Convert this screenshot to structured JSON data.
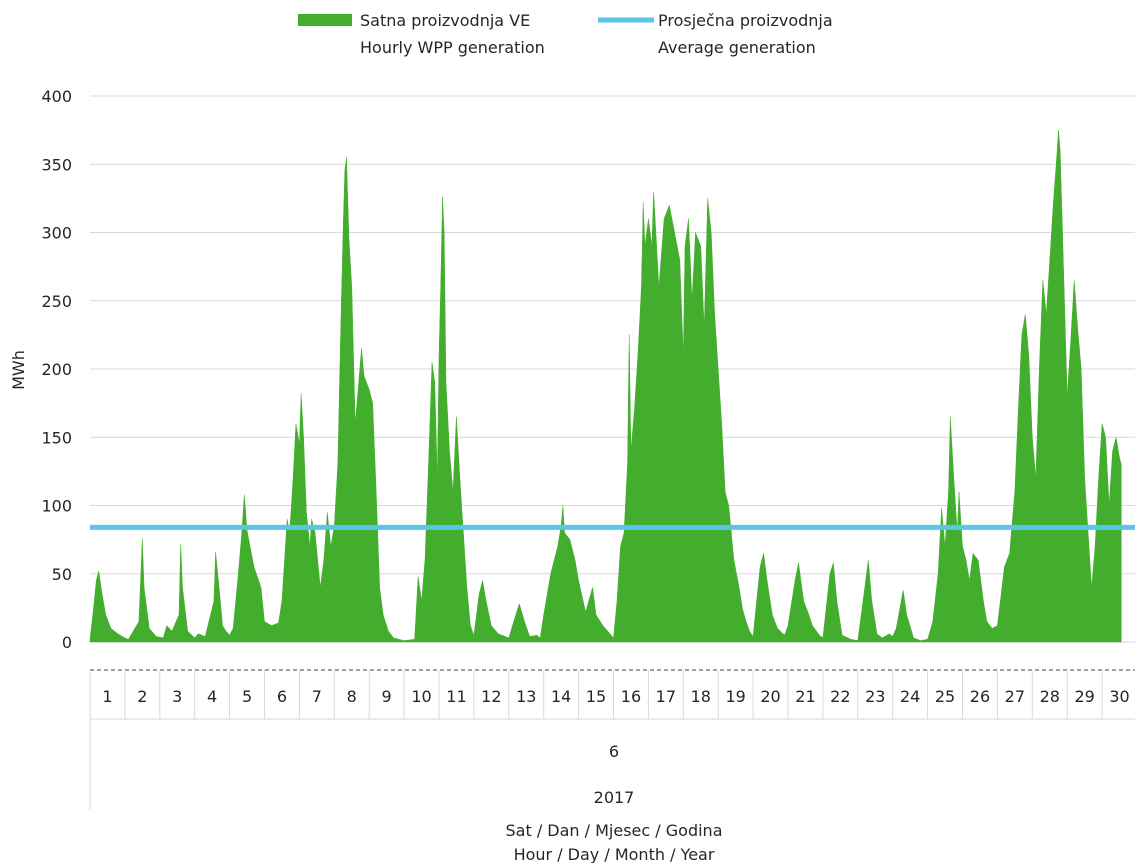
{
  "chart_data": {
    "type": "area",
    "title": "",
    "ylabel": "MWh",
    "xlabel_lines": [
      "Sat / Dan / Mjesec / Godina",
      "Hour / Day / Month / Year"
    ],
    "ylim": [
      0,
      400
    ],
    "yticks": [
      "0",
      "50",
      "100",
      "150",
      "200",
      "250",
      "300",
      "350",
      "400"
    ],
    "grid": "horizontal",
    "legend_position": "top",
    "legend": {
      "series1": [
        "Satna proizvodnja VE",
        "Hourly WPP generation"
      ],
      "series2": [
        "Prosječna proizvodnja",
        "Average generation"
      ]
    },
    "x_levels": {
      "day": [
        "1",
        "2",
        "3",
        "4",
        "5",
        "6",
        "7",
        "8",
        "9",
        "10",
        "11",
        "12",
        "13",
        "14",
        "15",
        "16",
        "17",
        "18",
        "19",
        "20",
        "21",
        "22",
        "23",
        "24",
        "25",
        "26",
        "27",
        "28",
        "29",
        "30"
      ],
      "month": "6",
      "year": "2017"
    },
    "series": [
      {
        "name": "Hourly WPP generation",
        "type": "area",
        "color": "#43AE2E",
        "x_unit": "day",
        "points": [
          [
            0.0,
            2
          ],
          [
            0.08,
            20
          ],
          [
            0.18,
            45
          ],
          [
            0.25,
            52
          ],
          [
            0.33,
            38
          ],
          [
            0.45,
            20
          ],
          [
            0.6,
            10
          ],
          [
            0.8,
            6
          ],
          [
            1.0,
            3
          ],
          [
            1.1,
            2
          ],
          [
            1.4,
            15
          ],
          [
            1.5,
            76
          ],
          [
            1.55,
            40
          ],
          [
            1.7,
            10
          ],
          [
            1.9,
            4
          ],
          [
            2.1,
            3
          ],
          [
            2.2,
            12
          ],
          [
            2.35,
            8
          ],
          [
            2.55,
            20
          ],
          [
            2.6,
            72
          ],
          [
            2.65,
            40
          ],
          [
            2.8,
            8
          ],
          [
            3.0,
            3
          ],
          [
            3.1,
            6
          ],
          [
            3.3,
            4
          ],
          [
            3.55,
            30
          ],
          [
            3.6,
            66
          ],
          [
            3.7,
            40
          ],
          [
            3.8,
            12
          ],
          [
            3.9,
            8
          ],
          [
            4.0,
            5
          ],
          [
            4.1,
            10
          ],
          [
            4.25,
            50
          ],
          [
            4.35,
            80
          ],
          [
            4.42,
            108
          ],
          [
            4.5,
            82
          ],
          [
            4.7,
            55
          ],
          [
            4.9,
            40
          ],
          [
            5.0,
            15
          ],
          [
            5.2,
            12
          ],
          [
            5.4,
            14
          ],
          [
            5.5,
            30
          ],
          [
            5.65,
            90
          ],
          [
            5.72,
            80
          ],
          [
            5.82,
            120
          ],
          [
            5.9,
            160
          ],
          [
            6.0,
            145
          ],
          [
            6.05,
            182
          ],
          [
            6.12,
            150
          ],
          [
            6.2,
            95
          ],
          [
            6.3,
            70
          ],
          [
            6.35,
            90
          ],
          [
            6.45,
            80
          ],
          [
            6.6,
            40
          ],
          [
            6.7,
            60
          ],
          [
            6.8,
            95
          ],
          [
            6.9,
            70
          ],
          [
            7.0,
            85
          ],
          [
            7.1,
            130
          ],
          [
            7.18,
            225
          ],
          [
            7.25,
            300
          ],
          [
            7.3,
            345
          ],
          [
            7.35,
            355
          ],
          [
            7.42,
            295
          ],
          [
            7.5,
            260
          ],
          [
            7.6,
            160
          ],
          [
            7.7,
            190
          ],
          [
            7.78,
            215
          ],
          [
            7.85,
            195
          ],
          [
            8.0,
            185
          ],
          [
            8.1,
            175
          ],
          [
            8.2,
            110
          ],
          [
            8.3,
            40
          ],
          [
            8.4,
            20
          ],
          [
            8.55,
            8
          ],
          [
            8.7,
            3
          ],
          [
            9.0,
            1
          ],
          [
            9.3,
            2
          ],
          [
            9.4,
            48
          ],
          [
            9.5,
            30
          ],
          [
            9.6,
            60
          ],
          [
            9.7,
            130
          ],
          [
            9.8,
            205
          ],
          [
            9.88,
            190
          ],
          [
            9.95,
            120
          ],
          [
            10.0,
            210
          ],
          [
            10.05,
            260
          ],
          [
            10.1,
            326
          ],
          [
            10.15,
            300
          ],
          [
            10.2,
            190
          ],
          [
            10.3,
            140
          ],
          [
            10.4,
            110
          ],
          [
            10.5,
            165
          ],
          [
            10.6,
            120
          ],
          [
            10.8,
            40
          ],
          [
            10.9,
            12
          ],
          [
            11.0,
            5
          ],
          [
            11.15,
            35
          ],
          [
            11.25,
            45
          ],
          [
            11.35,
            30
          ],
          [
            11.5,
            12
          ],
          [
            11.7,
            6
          ],
          [
            11.9,
            4
          ],
          [
            12.0,
            3
          ],
          [
            12.2,
            20
          ],
          [
            12.3,
            28
          ],
          [
            12.45,
            15
          ],
          [
            12.6,
            4
          ],
          [
            12.8,
            5
          ],
          [
            12.9,
            3
          ],
          [
            13.0,
            20
          ],
          [
            13.2,
            50
          ],
          [
            13.4,
            70
          ],
          [
            13.5,
            85
          ],
          [
            13.55,
            100
          ],
          [
            13.6,
            80
          ],
          [
            13.75,
            75
          ],
          [
            13.9,
            60
          ],
          [
            14.0,
            45
          ],
          [
            14.2,
            22
          ],
          [
            14.4,
            40
          ],
          [
            14.5,
            20
          ],
          [
            14.7,
            12
          ],
          [
            14.9,
            6
          ],
          [
            15.0,
            3
          ],
          [
            15.1,
            30
          ],
          [
            15.2,
            70
          ],
          [
            15.3,
            80
          ],
          [
            15.4,
            130
          ],
          [
            15.45,
            225
          ],
          [
            15.5,
            140
          ],
          [
            15.6,
            170
          ],
          [
            15.7,
            210
          ],
          [
            15.8,
            260
          ],
          [
            15.85,
            322
          ],
          [
            15.9,
            290
          ],
          [
            16.0,
            310
          ],
          [
            16.1,
            290
          ],
          [
            16.15,
            330
          ],
          [
            16.3,
            260
          ],
          [
            16.45,
            310
          ],
          [
            16.6,
            320
          ],
          [
            16.75,
            300
          ],
          [
            16.9,
            280
          ],
          [
            17.0,
            210
          ],
          [
            17.05,
            290
          ],
          [
            17.15,
            310
          ],
          [
            17.25,
            250
          ],
          [
            17.35,
            300
          ],
          [
            17.5,
            290
          ],
          [
            17.6,
            230
          ],
          [
            17.7,
            325
          ],
          [
            17.8,
            300
          ],
          [
            17.9,
            240
          ],
          [
            18.0,
            200
          ],
          [
            18.1,
            160
          ],
          [
            18.2,
            110
          ],
          [
            18.3,
            100
          ],
          [
            18.45,
            60
          ],
          [
            18.6,
            40
          ],
          [
            18.7,
            24
          ],
          [
            18.8,
            15
          ],
          [
            18.9,
            8
          ],
          [
            19.0,
            4
          ],
          [
            19.1,
            30
          ],
          [
            19.2,
            55
          ],
          [
            19.3,
            65
          ],
          [
            19.4,
            45
          ],
          [
            19.55,
            20
          ],
          [
            19.7,
            10
          ],
          [
            19.9,
            5
          ],
          [
            20.0,
            12
          ],
          [
            20.2,
            45
          ],
          [
            20.3,
            58
          ],
          [
            20.45,
            30
          ],
          [
            20.6,
            20
          ],
          [
            20.7,
            12
          ],
          [
            20.9,
            5
          ],
          [
            21.0,
            3
          ],
          [
            21.2,
            50
          ],
          [
            21.3,
            58
          ],
          [
            21.4,
            30
          ],
          [
            21.55,
            5
          ],
          [
            21.8,
            2
          ],
          [
            22.0,
            1
          ],
          [
            22.2,
            40
          ],
          [
            22.3,
            60
          ],
          [
            22.4,
            30
          ],
          [
            22.55,
            6
          ],
          [
            22.7,
            3
          ],
          [
            22.9,
            6
          ],
          [
            23.0,
            4
          ],
          [
            23.1,
            10
          ],
          [
            23.3,
            38
          ],
          [
            23.4,
            20
          ],
          [
            23.6,
            3
          ],
          [
            23.8,
            1
          ],
          [
            24.0,
            2
          ],
          [
            24.15,
            15
          ],
          [
            24.3,
            50
          ],
          [
            24.4,
            98
          ],
          [
            24.5,
            70
          ],
          [
            24.6,
            110
          ],
          [
            24.65,
            165
          ],
          [
            24.75,
            120
          ],
          [
            24.85,
            80
          ],
          [
            24.9,
            110
          ],
          [
            25.0,
            70
          ],
          [
            25.1,
            60
          ],
          [
            25.2,
            45
          ],
          [
            25.3,
            65
          ],
          [
            25.45,
            60
          ],
          [
            25.6,
            30
          ],
          [
            25.7,
            15
          ],
          [
            25.85,
            10
          ],
          [
            26.0,
            12
          ],
          [
            26.2,
            55
          ],
          [
            26.35,
            65
          ],
          [
            26.5,
            110
          ],
          [
            26.6,
            170
          ],
          [
            26.7,
            225
          ],
          [
            26.8,
            240
          ],
          [
            26.9,
            210
          ],
          [
            27.0,
            150
          ],
          [
            27.1,
            120
          ],
          [
            27.2,
            200
          ],
          [
            27.3,
            265
          ],
          [
            27.4,
            240
          ],
          [
            27.5,
            280
          ],
          [
            27.6,
            320
          ],
          [
            27.7,
            355
          ],
          [
            27.75,
            375
          ],
          [
            27.8,
            360
          ],
          [
            27.9,
            270
          ],
          [
            28.0,
            180
          ],
          [
            28.1,
            220
          ],
          [
            28.2,
            265
          ],
          [
            28.3,
            230
          ],
          [
            28.4,
            200
          ],
          [
            28.5,
            120
          ],
          [
            28.6,
            80
          ],
          [
            28.7,
            40
          ],
          [
            28.8,
            70
          ],
          [
            28.9,
            120
          ],
          [
            29.0,
            160
          ],
          [
            29.1,
            150
          ],
          [
            29.2,
            100
          ],
          [
            29.3,
            140
          ],
          [
            29.4,
            150
          ],
          [
            29.5,
            135
          ],
          [
            29.55,
            130
          ]
        ]
      },
      {
        "name": "Average generation",
        "type": "line",
        "color": "#5BC5E6",
        "value": 84
      }
    ]
  }
}
